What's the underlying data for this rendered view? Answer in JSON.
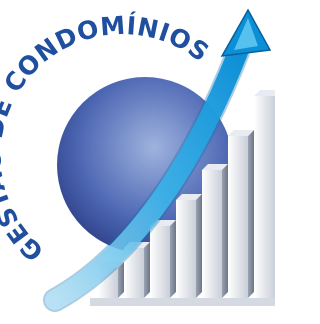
{
  "title": "GESTÃO DE CONDOMÍNIOS"
}
